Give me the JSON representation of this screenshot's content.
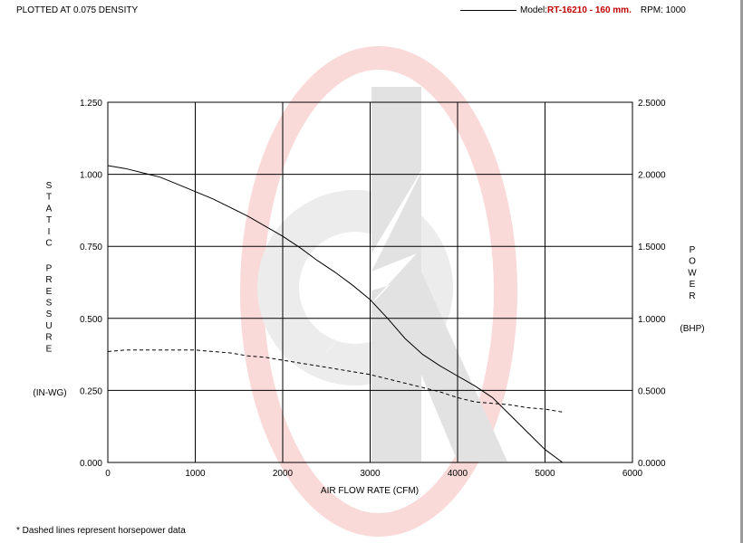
{
  "header": {
    "density": "PLOTTED AT 0.075 DENSITY",
    "model_label": "Model:",
    "model_value": "RT-16210 - 160 mm.",
    "rpm": "RPM: 1000"
  },
  "footnote": "* Dashed lines represent horsepower data",
  "colors": {
    "watermark": "#f4a8a8",
    "watermark_gray": "#e6e6e6",
    "model": "#c00000"
  },
  "chart_data": {
    "type": "line",
    "title": "",
    "xlabel": "AIR FLOW RATE (CFM)",
    "ylabel": "STATIC PRESSURE",
    "ylabel_unit": "(IN-WG)",
    "y2label": "POWER",
    "y2label_unit": "(BHP)",
    "xlim": [
      0,
      6000
    ],
    "ylim": [
      0,
      1.25
    ],
    "y2lim": [
      0,
      2.5
    ],
    "grid": true,
    "x_ticks": [
      "0",
      "1000",
      "2000",
      "3000",
      "4000",
      "5000",
      "6000"
    ],
    "y_ticks": [
      "0.000",
      "0.250",
      "0.500",
      "0.750",
      "1.000",
      "1.250"
    ],
    "y2_ticks": [
      "0.0000",
      "0.5000",
      "1.0000",
      "1.5000",
      "2.0000",
      "2.5000"
    ],
    "series": [
      {
        "axis": "left",
        "style": "solid",
        "x": [
          0,
          200,
          400,
          600,
          800,
          1000,
          1200,
          1400,
          1600,
          1800,
          2000,
          2200,
          2400,
          2600,
          2800,
          3000,
          3200,
          3400,
          3600,
          3800,
          4000,
          4200,
          4400,
          4600,
          4800,
          5000,
          5200
        ],
        "y": [
          1.03,
          1.02,
          1.005,
          0.99,
          0.965,
          0.94,
          0.915,
          0.885,
          0.855,
          0.82,
          0.785,
          0.745,
          0.7,
          0.66,
          0.615,
          0.565,
          0.5,
          0.43,
          0.375,
          0.335,
          0.3,
          0.265,
          0.225,
          0.165,
          0.105,
          0.045,
          0.0
        ]
      },
      {
        "axis": "right",
        "style": "dashed",
        "x": [
          0,
          200,
          400,
          600,
          800,
          1000,
          1200,
          1400,
          1600,
          1800,
          2000,
          2200,
          2400,
          2600,
          2800,
          3000,
          3200,
          3400,
          3600,
          3800,
          4000,
          4200,
          4400,
          4600,
          4800,
          5000,
          5200
        ],
        "y": [
          0.77,
          0.78,
          0.78,
          0.78,
          0.78,
          0.78,
          0.77,
          0.76,
          0.74,
          0.73,
          0.71,
          0.69,
          0.67,
          0.65,
          0.63,
          0.61,
          0.58,
          0.55,
          0.52,
          0.49,
          0.45,
          0.42,
          0.41,
          0.4,
          0.38,
          0.37,
          0.35
        ]
      }
    ]
  }
}
